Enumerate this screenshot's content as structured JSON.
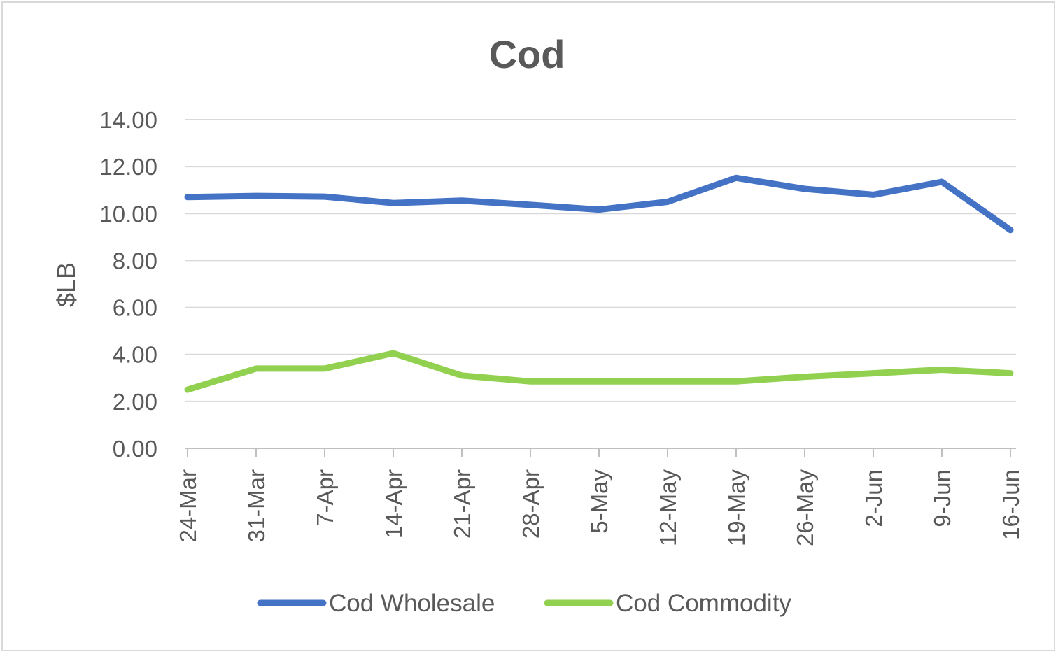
{
  "chart_data": {
    "type": "line",
    "title": "Cod",
    "xlabel": "",
    "ylabel": "$LB",
    "ylim": [
      0,
      14
    ],
    "yticks": [
      "0.00",
      "2.00",
      "4.00",
      "6.00",
      "8.00",
      "10.00",
      "12.00",
      "14.00"
    ],
    "categories": [
      "24-Mar",
      "31-Mar",
      "7-Apr",
      "14-Apr",
      "21-Apr",
      "28-Apr",
      "5-May",
      "12-May",
      "19-May",
      "26-May",
      "2-Jun",
      "9-Jun",
      "16-Jun"
    ],
    "grid": true,
    "legend_position": "bottom",
    "series": [
      {
        "name": "Cod Wholesale",
        "color": "#4472c4",
        "values": [
          10.7,
          10.75,
          10.72,
          10.45,
          10.55,
          10.37,
          10.17,
          10.5,
          11.52,
          11.05,
          10.8,
          11.35,
          9.3
        ]
      },
      {
        "name": "Cod Commodity",
        "color": "#92d050",
        "values": [
          2.5,
          3.4,
          3.4,
          4.05,
          3.1,
          2.85,
          2.85,
          2.85,
          2.85,
          3.05,
          3.2,
          3.35,
          3.2
        ]
      }
    ]
  }
}
